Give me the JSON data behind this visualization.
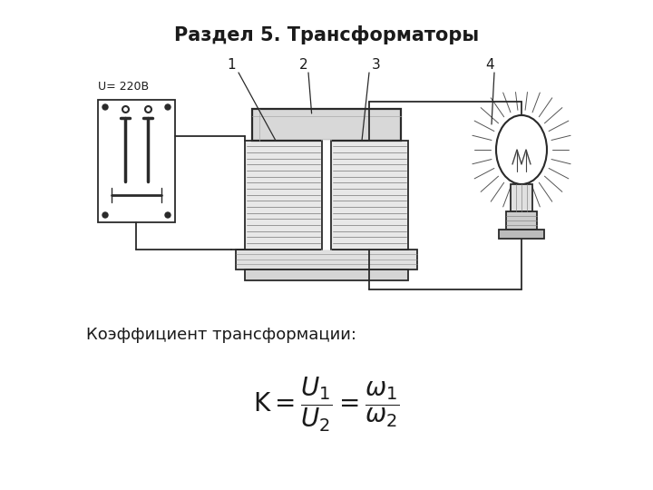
{
  "title": "Раздел 5. Трансформаторы",
  "title_fontsize": 15,
  "subtitle": "Коэффициент трансформации:",
  "subtitle_fontsize": 13,
  "formula": "$\\mathrm{K} = \\dfrac{U_1}{U_2} = \\dfrac{\\omega_1}{\\omega_2}$",
  "formula_fontsize": 20,
  "background_color": "#ffffff",
  "text_color": "#1a1a1a",
  "diagram_voltage": "U= 220В",
  "fig_width": 7.2,
  "fig_height": 5.4,
  "dpi": 100,
  "lc": "#2a2a2a",
  "lw": 1.3
}
